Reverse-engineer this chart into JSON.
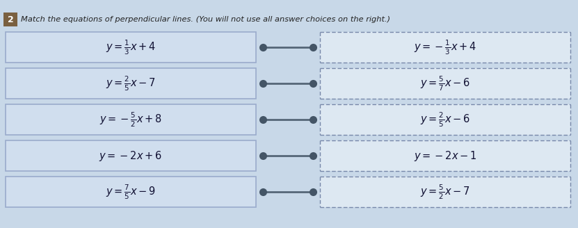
{
  "title": "Match the equations of perpendicular lines. (You will not use all answer choices on the right.)",
  "question_number": "2",
  "left_equations": [
    "$y = \\frac{1}{3}x + 4$",
    "$y = \\frac{2}{5}x - 7$",
    "$y = -\\frac{5}{2}x + 8$",
    "$y = -2x + 6$",
    "$y = \\frac{7}{5}x - 9$"
  ],
  "right_equations": [
    "$y = -\\frac{1}{3}x + 4$",
    "$y = \\frac{5}{7}x - 6$",
    "$y = \\frac{2}{5}x - 6$",
    "$y = -2x - 1$",
    "$y = \\frac{5}{2}x - 7$"
  ],
  "page_bg": "#c8d8e8",
  "left_box_fill": "#c8d8ea",
  "left_box_edge": "#8899bb",
  "right_box_fill": "#e8eef5",
  "right_box_edge": "#8899aa",
  "number_box_color": "#7a6040",
  "title_color": "#222222",
  "dot_color": "#445566",
  "line_color": "#556677",
  "eq_color": "#111133"
}
